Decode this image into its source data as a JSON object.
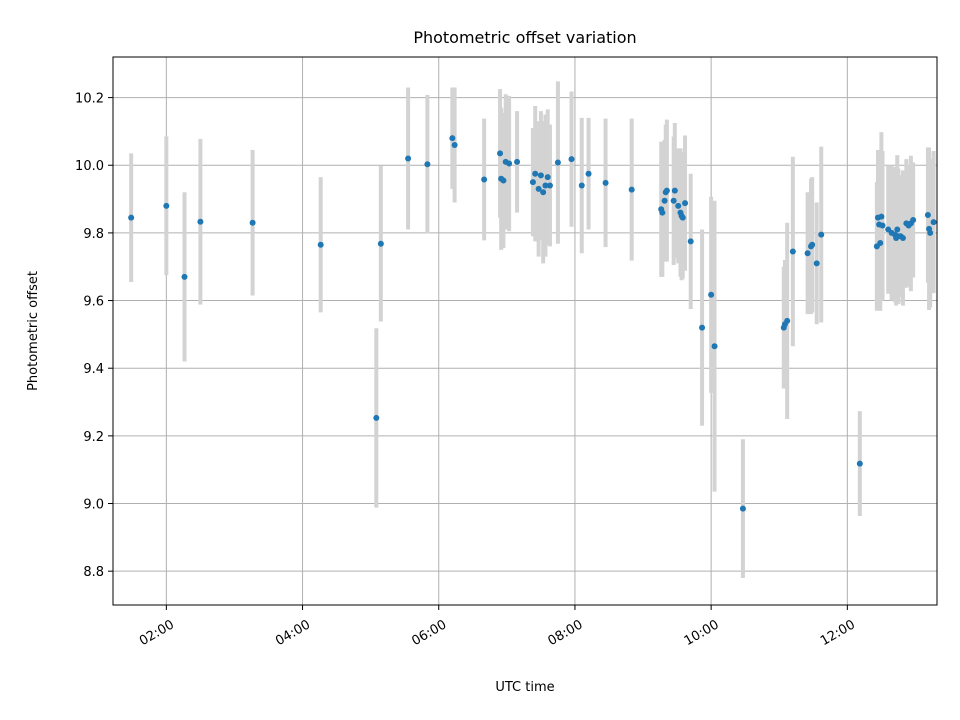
{
  "chart_data": {
    "type": "scatter",
    "title": "Photometric offset variation",
    "xlabel": "UTC time",
    "ylabel": "Photometric offset",
    "xlim": [
      "01:13",
      "13:19"
    ],
    "ylim": [
      8.7,
      10.32
    ],
    "xticks": [
      "02:00",
      "04:00",
      "06:00",
      "08:00",
      "10:00",
      "12:00"
    ],
    "yticks": [
      "8.8",
      "9.0",
      "9.2",
      "9.4",
      "9.6",
      "9.8",
      "10.0",
      "10.2"
    ],
    "grid": true,
    "marker_color": "#1f77b4",
    "errorbar_color": "#d3d3d3",
    "points": [
      {
        "x": "01:29",
        "y": 9.845,
        "err": 0.19
      },
      {
        "x": "02:00",
        "y": 9.88,
        "err": 0.205
      },
      {
        "x": "02:16",
        "y": 9.67,
        "err": 0.25
      },
      {
        "x": "02:30",
        "y": 9.833,
        "err": 0.245
      },
      {
        "x": "03:16",
        "y": 9.83,
        "err": 0.215
      },
      {
        "x": "04:16",
        "y": 9.765,
        "err": 0.2
      },
      {
        "x": "05:05",
        "y": 9.253,
        "err": 0.265
      },
      {
        "x": "05:09",
        "y": 9.768,
        "err": 0.23
      },
      {
        "x": "05:33",
        "y": 10.02,
        "err": 0.21
      },
      {
        "x": "05:50",
        "y": 10.003,
        "err": 0.205
      },
      {
        "x": "06:12",
        "y": 10.08,
        "err": 0.15
      },
      {
        "x": "06:14",
        "y": 10.06,
        "err": 0.17
      },
      {
        "x": "06:40",
        "y": 9.958,
        "err": 0.18
      },
      {
        "x": "06:54",
        "y": 10.035,
        "err": 0.19
      },
      {
        "x": "06:55",
        "y": 9.96,
        "err": 0.21
      },
      {
        "x": "06:57",
        "y": 9.955,
        "err": 0.2
      },
      {
        "x": "06:59",
        "y": 10.01,
        "err": 0.2
      },
      {
        "x": "07:02",
        "y": 10.005,
        "err": 0.2
      },
      {
        "x": "07:09",
        "y": 10.01,
        "err": 0.15
      },
      {
        "x": "07:23",
        "y": 9.95,
        "err": 0.16
      },
      {
        "x": "07:25",
        "y": 9.975,
        "err": 0.2
      },
      {
        "x": "07:28",
        "y": 9.93,
        "err": 0.2
      },
      {
        "x": "07:30",
        "y": 9.97,
        "err": 0.19
      },
      {
        "x": "07:32",
        "y": 9.92,
        "err": 0.21
      },
      {
        "x": "07:34",
        "y": 9.94,
        "err": 0.21
      },
      {
        "x": "07:36",
        "y": 9.965,
        "err": 0.2
      },
      {
        "x": "07:38",
        "y": 9.94,
        "err": 0.18
      },
      {
        "x": "07:45",
        "y": 10.008,
        "err": 0.24
      },
      {
        "x": "07:57",
        "y": 10.018,
        "err": 0.2
      },
      {
        "x": "08:06",
        "y": 9.94,
        "err": 0.2
      },
      {
        "x": "08:12",
        "y": 9.975,
        "err": 0.165
      },
      {
        "x": "08:27",
        "y": 9.948,
        "err": 0.19
      },
      {
        "x": "08:50",
        "y": 9.928,
        "err": 0.21
      },
      {
        "x": "09:16",
        "y": 9.87,
        "err": 0.2
      },
      {
        "x": "09:17",
        "y": 9.86,
        "err": 0.19
      },
      {
        "x": "09:19",
        "y": 9.895,
        "err": 0.18
      },
      {
        "x": "09:20",
        "y": 9.92,
        "err": 0.2
      },
      {
        "x": "09:21",
        "y": 9.925,
        "err": 0.21
      },
      {
        "x": "09:27",
        "y": 9.895,
        "err": 0.19
      },
      {
        "x": "09:28",
        "y": 9.925,
        "err": 0.2
      },
      {
        "x": "09:31",
        "y": 9.88,
        "err": 0.17
      },
      {
        "x": "09:33",
        "y": 9.86,
        "err": 0.19
      },
      {
        "x": "09:34",
        "y": 9.85,
        "err": 0.19
      },
      {
        "x": "09:35",
        "y": 9.845,
        "err": 0.18
      },
      {
        "x": "09:37",
        "y": 9.888,
        "err": 0.2
      },
      {
        "x": "09:42",
        "y": 9.775,
        "err": 0.2
      },
      {
        "x": "09:52",
        "y": 9.52,
        "err": 0.29
      },
      {
        "x": "10:00",
        "y": 9.617,
        "err": 0.29
      },
      {
        "x": "10:03",
        "y": 9.465,
        "err": 0.43
      },
      {
        "x": "10:28",
        "y": 8.985,
        "err": 0.205
      },
      {
        "x": "11:04",
        "y": 9.52,
        "err": 0.18
      },
      {
        "x": "11:05",
        "y": 9.53,
        "err": 0.19
      },
      {
        "x": "11:07",
        "y": 9.54,
        "err": 0.29
      },
      {
        "x": "11:12",
        "y": 9.745,
        "err": 0.28
      },
      {
        "x": "11:25",
        "y": 9.74,
        "err": 0.18
      },
      {
        "x": "11:28",
        "y": 9.76,
        "err": 0.2
      },
      {
        "x": "11:29",
        "y": 9.765,
        "err": 0.2
      },
      {
        "x": "11:33",
        "y": 9.71,
        "err": 0.18
      },
      {
        "x": "11:37",
        "y": 9.795,
        "err": 0.26
      },
      {
        "x": "12:11",
        "y": 9.118,
        "err": 0.155
      },
      {
        "x": "12:26",
        "y": 9.76,
        "err": 0.19
      },
      {
        "x": "12:27",
        "y": 9.845,
        "err": 0.2
      },
      {
        "x": "12:28",
        "y": 9.825,
        "err": 0.22
      },
      {
        "x": "12:29",
        "y": 9.77,
        "err": 0.2
      },
      {
        "x": "12:30",
        "y": 9.848,
        "err": 0.25
      },
      {
        "x": "12:31",
        "y": 9.822,
        "err": 0.22
      },
      {
        "x": "12:36",
        "y": 9.81,
        "err": 0.19
      },
      {
        "x": "12:39",
        "y": 9.8,
        "err": 0.2
      },
      {
        "x": "12:42",
        "y": 9.795,
        "err": 0.2
      },
      {
        "x": "12:43",
        "y": 9.785,
        "err": 0.2
      },
      {
        "x": "12:44",
        "y": 9.81,
        "err": 0.22
      },
      {
        "x": "12:45",
        "y": 9.79,
        "err": 0.2
      },
      {
        "x": "12:47",
        "y": 9.79,
        "err": 0.18
      },
      {
        "x": "12:49",
        "y": 9.785,
        "err": 0.2
      },
      {
        "x": "12:52",
        "y": 9.828,
        "err": 0.19
      },
      {
        "x": "12:54",
        "y": 9.822,
        "err": 0.18
      },
      {
        "x": "12:56",
        "y": 9.828,
        "err": 0.2
      },
      {
        "x": "12:58",
        "y": 9.838,
        "err": 0.17
      },
      {
        "x": "13:11",
        "y": 9.853,
        "err": 0.2
      },
      {
        "x": "13:12",
        "y": 9.812,
        "err": 0.24
      },
      {
        "x": "13:13",
        "y": 9.8,
        "err": 0.22
      },
      {
        "x": "13:16",
        "y": 9.832,
        "err": 0.21
      }
    ]
  }
}
